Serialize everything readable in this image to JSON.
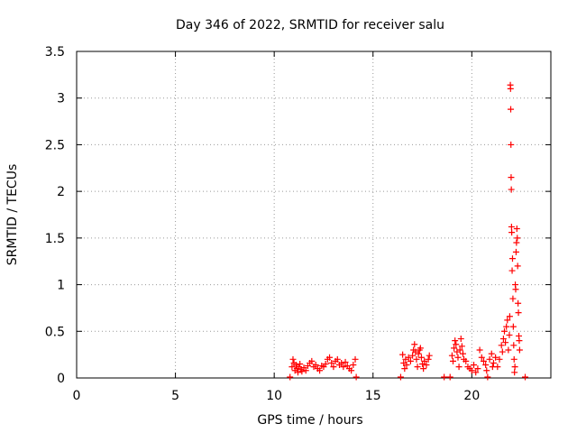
{
  "chart_data": {
    "type": "scatter",
    "title": "Day 346 of 2022, SRMTID for receiver salu",
    "xlabel": "GPS time / hours",
    "ylabel": "SRMTID / TECUs",
    "xlim": [
      0,
      24
    ],
    "ylim": [
      0,
      3.5
    ],
    "xticks": [
      0,
      5,
      10,
      15,
      20
    ],
    "yticks": [
      0,
      0.5,
      1,
      1.5,
      2,
      2.5,
      3,
      3.5
    ],
    "xtick_labels": [
      "0",
      "5",
      "10",
      "15",
      "20"
    ],
    "ytick_labels": [
      "0",
      "0.5",
      "1",
      "1.5",
      "2",
      "2.5",
      "3",
      "3.5"
    ],
    "grid": true,
    "marker": "+",
    "color": "#ff0000",
    "series": [
      {
        "name": "SRMTID",
        "points": [
          [
            10.8,
            0.01
          ],
          [
            10.9,
            0.12
          ],
          [
            10.95,
            0.2
          ],
          [
            11.0,
            0.16
          ],
          [
            11.05,
            0.08
          ],
          [
            11.1,
            0.14
          ],
          [
            11.15,
            0.1
          ],
          [
            11.2,
            0.06
          ],
          [
            11.25,
            0.12
          ],
          [
            11.3,
            0.15
          ],
          [
            11.35,
            0.09
          ],
          [
            11.4,
            0.07
          ],
          [
            11.5,
            0.11
          ],
          [
            11.6,
            0.08
          ],
          [
            11.7,
            0.13
          ],
          [
            11.8,
            0.16
          ],
          [
            11.9,
            0.18
          ],
          [
            12.0,
            0.12
          ],
          [
            12.1,
            0.14
          ],
          [
            12.2,
            0.1
          ],
          [
            12.3,
            0.08
          ],
          [
            12.4,
            0.13
          ],
          [
            12.5,
            0.12
          ],
          [
            12.6,
            0.15
          ],
          [
            12.7,
            0.2
          ],
          [
            12.8,
            0.22
          ],
          [
            12.9,
            0.16
          ],
          [
            13.0,
            0.12
          ],
          [
            13.1,
            0.18
          ],
          [
            13.2,
            0.2
          ],
          [
            13.3,
            0.14
          ],
          [
            13.4,
            0.16
          ],
          [
            13.5,
            0.12
          ],
          [
            13.6,
            0.17
          ],
          [
            13.7,
            0.13
          ],
          [
            13.8,
            0.1
          ],
          [
            13.9,
            0.08
          ],
          [
            14.0,
            0.14
          ],
          [
            14.1,
            0.2
          ],
          [
            14.15,
            0.01
          ],
          [
            16.4,
            0.01
          ],
          [
            16.5,
            0.25
          ],
          [
            16.55,
            0.16
          ],
          [
            16.6,
            0.1
          ],
          [
            16.65,
            0.2
          ],
          [
            16.7,
            0.14
          ],
          [
            16.8,
            0.22
          ],
          [
            16.9,
            0.18
          ],
          [
            17.0,
            0.24
          ],
          [
            17.05,
            0.3
          ],
          [
            17.1,
            0.36
          ],
          [
            17.15,
            0.28
          ],
          [
            17.2,
            0.2
          ],
          [
            17.25,
            0.12
          ],
          [
            17.3,
            0.26
          ],
          [
            17.35,
            0.3
          ],
          [
            17.4,
            0.32
          ],
          [
            17.45,
            0.22
          ],
          [
            17.5,
            0.15
          ],
          [
            17.55,
            0.1
          ],
          [
            17.6,
            0.18
          ],
          [
            17.7,
            0.14
          ],
          [
            17.8,
            0.2
          ],
          [
            17.85,
            0.24
          ],
          [
            18.6,
            0.01
          ],
          [
            18.9,
            0.01
          ],
          [
            19.0,
            0.24
          ],
          [
            19.05,
            0.18
          ],
          [
            19.1,
            0.32
          ],
          [
            19.15,
            0.4
          ],
          [
            19.2,
            0.36
          ],
          [
            19.25,
            0.28
          ],
          [
            19.3,
            0.22
          ],
          [
            19.35,
            0.12
          ],
          [
            19.4,
            0.3
          ],
          [
            19.45,
            0.42
          ],
          [
            19.5,
            0.34
          ],
          [
            19.55,
            0.26
          ],
          [
            19.6,
            0.2
          ],
          [
            19.7,
            0.18
          ],
          [
            19.8,
            0.12
          ],
          [
            19.9,
            0.1
          ],
          [
            20.0,
            0.08
          ],
          [
            20.1,
            0.14
          ],
          [
            20.2,
            0.06
          ],
          [
            20.3,
            0.1
          ],
          [
            20.4,
            0.3
          ],
          [
            20.5,
            0.22
          ],
          [
            20.6,
            0.18
          ],
          [
            20.7,
            0.14
          ],
          [
            20.75,
            0.08
          ],
          [
            20.8,
            0.01
          ],
          [
            20.9,
            0.2
          ],
          [
            21.0,
            0.26
          ],
          [
            21.05,
            0.12
          ],
          [
            21.1,
            0.16
          ],
          [
            21.2,
            0.22
          ],
          [
            21.3,
            0.12
          ],
          [
            21.4,
            0.2
          ],
          [
            21.5,
            0.35
          ],
          [
            21.55,
            0.28
          ],
          [
            21.6,
            0.42
          ],
          [
            21.65,
            0.5
          ],
          [
            21.7,
            0.38
          ],
          [
            21.75,
            0.55
          ],
          [
            21.8,
            0.62
          ],
          [
            21.85,
            0.3
          ],
          [
            21.9,
            0.46
          ],
          [
            21.92,
            0.66
          ],
          [
            21.95,
            3.14
          ],
          [
            21.96,
            3.1
          ],
          [
            21.97,
            2.88
          ],
          [
            21.98,
            2.5
          ],
          [
            21.99,
            2.15
          ],
          [
            22.0,
            2.02
          ],
          [
            22.01,
            1.62
          ],
          [
            22.02,
            1.56
          ],
          [
            22.04,
            1.15
          ],
          [
            22.06,
            1.28
          ],
          [
            22.08,
            0.85
          ],
          [
            22.1,
            0.55
          ],
          [
            22.12,
            0.35
          ],
          [
            22.14,
            0.2
          ],
          [
            22.16,
            0.06
          ],
          [
            22.18,
            0.12
          ],
          [
            22.2,
            1.0
          ],
          [
            22.22,
            0.95
          ],
          [
            22.24,
            1.35
          ],
          [
            22.26,
            1.45
          ],
          [
            22.28,
            1.6
          ],
          [
            22.3,
            1.5
          ],
          [
            22.32,
            1.2
          ],
          [
            22.34,
            0.8
          ],
          [
            22.36,
            0.7
          ],
          [
            22.38,
            0.45
          ],
          [
            22.4,
            0.4
          ],
          [
            22.42,
            0.3
          ],
          [
            22.7,
            0.01
          ]
        ]
      }
    ]
  }
}
